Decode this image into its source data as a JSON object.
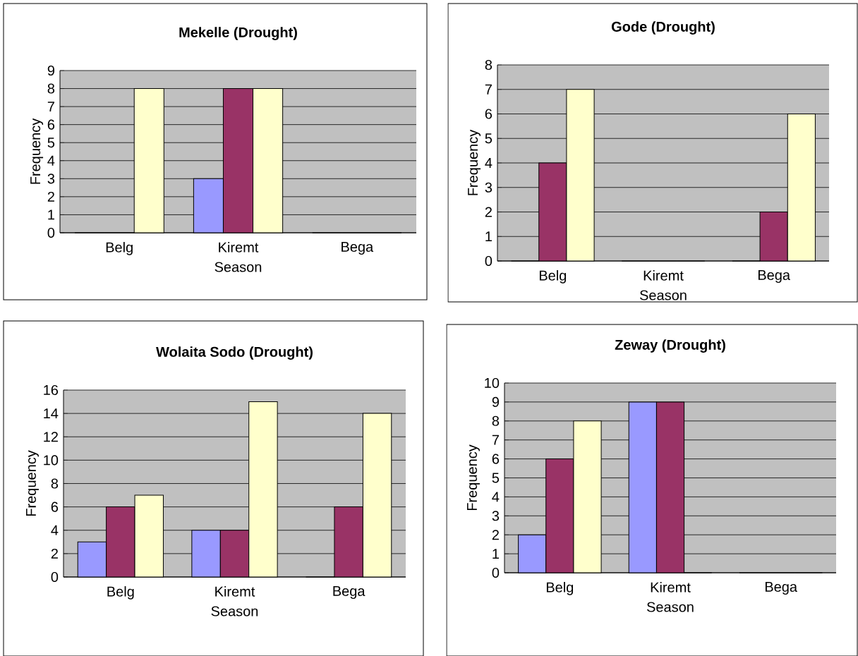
{
  "chart_data": [
    {
      "type": "bar",
      "title": "Mekelle (Drought)",
      "xlabel": "Season",
      "ylabel": "Frequency",
      "categories": [
        "Belg",
        "Kiremt",
        "Bega"
      ],
      "ylim": [
        0,
        9
      ],
      "yticks": [
        0,
        1,
        2,
        3,
        4,
        5,
        6,
        7,
        8,
        9
      ],
      "grid": "y",
      "series": [
        {
          "color": "#9999ff",
          "values": [
            0,
            3,
            0
          ]
        },
        {
          "color": "#993366",
          "values": [
            0,
            8,
            0
          ]
        },
        {
          "color": "#ffffcc",
          "values": [
            8,
            8,
            0
          ]
        }
      ]
    },
    {
      "type": "bar",
      "title": "Gode (Drought)",
      "xlabel": "Season",
      "ylabel": "Frequency",
      "categories": [
        "Belg",
        "Kiremt",
        "Bega"
      ],
      "ylim": [
        0,
        8
      ],
      "yticks": [
        0,
        1,
        2,
        3,
        4,
        5,
        6,
        7,
        8
      ],
      "grid": "y",
      "series": [
        {
          "color": "#9999ff",
          "values": [
            0,
            0,
            0
          ]
        },
        {
          "color": "#993366",
          "values": [
            4,
            0,
            2
          ]
        },
        {
          "color": "#ffffcc",
          "values": [
            7,
            0,
            6
          ]
        }
      ]
    },
    {
      "type": "bar",
      "title": "Wolaita Sodo (Drought)",
      "xlabel": "Season",
      "ylabel": "Frequency",
      "categories": [
        "Belg",
        "Kiremt",
        "Bega"
      ],
      "ylim": [
        0,
        16
      ],
      "yticks": [
        0,
        2,
        4,
        6,
        8,
        10,
        12,
        14,
        16
      ],
      "grid": "y",
      "series": [
        {
          "color": "#9999ff",
          "values": [
            3,
            4,
            0
          ]
        },
        {
          "color": "#993366",
          "values": [
            6,
            4,
            6
          ]
        },
        {
          "color": "#ffffcc",
          "values": [
            7,
            15,
            14
          ]
        }
      ]
    },
    {
      "type": "bar",
      "title": "Zeway (Drought)",
      "xlabel": "Season",
      "ylabel": "Frequency",
      "categories": [
        "Belg",
        "Kiremt",
        "Bega"
      ],
      "ylim": [
        0,
        10
      ],
      "yticks": [
        0,
        1,
        2,
        3,
        4,
        5,
        6,
        7,
        8,
        9,
        10
      ],
      "grid": "y",
      "series": [
        {
          "color": "#9999ff",
          "values": [
            2,
            9,
            0
          ]
        },
        {
          "color": "#993366",
          "values": [
            6,
            9,
            0
          ]
        },
        {
          "color": "#ffffcc",
          "values": [
            8,
            0,
            0
          ]
        }
      ]
    }
  ]
}
